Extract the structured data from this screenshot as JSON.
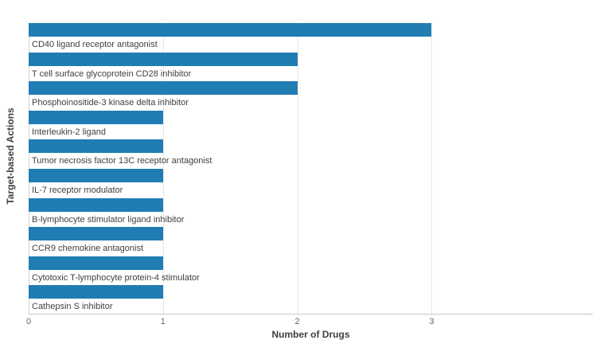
{
  "chart_data": {
    "type": "bar",
    "orientation": "horizontal",
    "title": "",
    "xlabel": "Number of Drugs",
    "ylabel": "Target-based Actions",
    "categories": [
      "CD40 ligand receptor antagonist",
      "T cell surface glycoprotein CD28 inhibitor",
      "Phosphoinositide-3 kinase delta inhibitor",
      "Interleukin-2 ligand",
      "Tumor necrosis factor 13C receptor antagonist",
      "IL-7 receptor modulator",
      "B-lymphocyte stimulator ligand inhibitor",
      "CCR9 chemokine antagonist",
      "Cytotoxic T-lymphocyte protein-4 stimulator",
      "Cathepsin S inhibitor"
    ],
    "values": [
      3,
      2,
      2,
      1,
      1,
      1,
      1,
      1,
      1,
      1
    ],
    "xlim": [
      0,
      4.2
    ],
    "xticks": [
      0,
      1,
      2,
      3
    ],
    "grid": true,
    "legend": "none",
    "colors": {
      "bar": "#1f7db4",
      "gridline": "#e6e6e6",
      "axis_line": "#c9c9c9",
      "category_label": "#404040",
      "tick_label": "#666666",
      "axis_title": "#404040"
    }
  }
}
